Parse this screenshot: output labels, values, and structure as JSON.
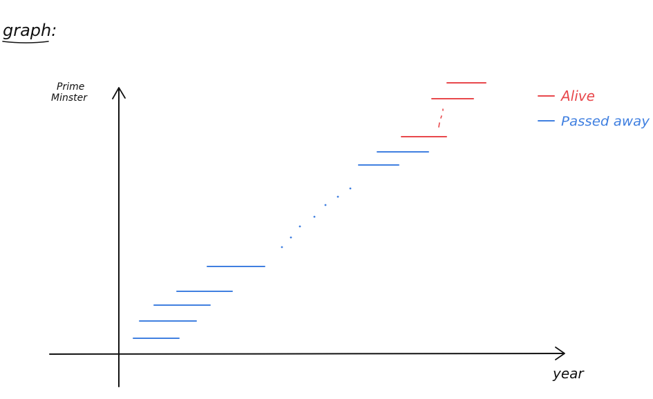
{
  "heading": "graph:",
  "y_axis_label": "Prime Minster",
  "x_axis_label": "year",
  "legend": {
    "alive": "Alive",
    "passed": "Passed away"
  },
  "colors": {
    "alive": "#e8474b",
    "passed": "#3f7fe0",
    "ink": "#111111"
  }
}
